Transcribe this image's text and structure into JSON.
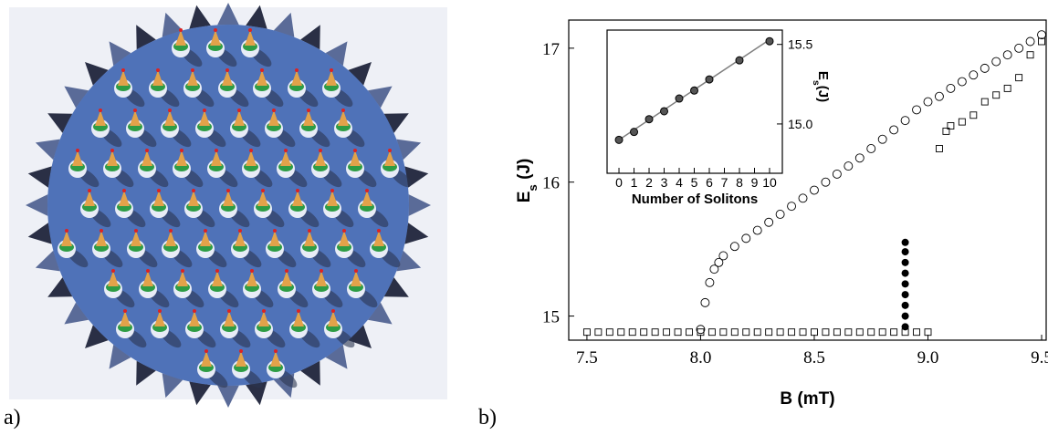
{
  "panel_labels": [
    "a)",
    "b)"
  ],
  "chart_data": [
    {
      "type": "scatter",
      "xlabel": "B (mT)",
      "ylabel_parts": [
        "E",
        "s",
        " (J)"
      ],
      "xlim": [
        7.42,
        9.52
      ],
      "ylim": [
        14.82,
        17.21
      ],
      "xticks": [
        {
          "value": 7.5,
          "label": "7.5"
        },
        {
          "value": 8.0,
          "label": "8.0"
        },
        {
          "value": 8.5,
          "label": "8.5"
        },
        {
          "value": 9.0,
          "label": "9.0"
        },
        {
          "value": 9.5,
          "label": "9.5"
        }
      ],
      "yticks": [
        15,
        16,
        17
      ],
      "series": [
        {
          "marker": "square-open",
          "color": "#000000",
          "x": [
            7.5,
            7.55,
            7.6,
            7.65,
            7.7,
            7.75,
            7.8,
            7.85,
            7.9,
            7.95,
            8.0,
            8.05,
            8.1,
            8.15,
            8.2,
            8.25,
            8.3,
            8.35,
            8.4,
            8.45,
            8.5,
            8.55,
            8.6,
            8.65,
            8.7,
            8.75,
            8.8,
            8.85,
            8.9,
            8.95,
            9.0,
            9.05,
            9.08,
            9.1,
            9.15,
            9.2,
            9.25,
            9.3,
            9.35,
            9.4,
            9.45,
            9.5
          ],
          "values": [
            14.88,
            14.88,
            14.88,
            14.88,
            14.88,
            14.88,
            14.88,
            14.88,
            14.88,
            14.88,
            14.88,
            14.88,
            14.88,
            14.88,
            14.88,
            14.88,
            14.88,
            14.88,
            14.88,
            14.88,
            14.88,
            14.88,
            14.88,
            14.88,
            14.88,
            14.88,
            14.88,
            14.88,
            14.88,
            14.88,
            14.88,
            16.25,
            16.38,
            16.42,
            16.45,
            16.5,
            16.6,
            16.65,
            16.7,
            16.78,
            16.95,
            17.05
          ]
        },
        {
          "marker": "circle-open",
          "color": "#000000",
          "x": [
            8.0,
            8.02,
            8.04,
            8.06,
            8.08,
            8.1,
            8.15,
            8.2,
            8.25,
            8.3,
            8.35,
            8.4,
            8.45,
            8.5,
            8.55,
            8.6,
            8.65,
            8.7,
            8.75,
            8.8,
            8.85,
            8.9,
            8.95,
            9.0,
            9.05,
            9.1,
            9.15,
            9.2,
            9.25,
            9.3,
            9.35,
            9.4,
            9.45,
            9.5
          ],
          "values": [
            14.9,
            15.1,
            15.25,
            15.35,
            15.4,
            15.45,
            15.52,
            15.58,
            15.64,
            15.7,
            15.76,
            15.82,
            15.88,
            15.94,
            16.0,
            16.06,
            16.12,
            16.18,
            16.25,
            16.32,
            16.39,
            16.46,
            16.54,
            16.6,
            16.64,
            16.7,
            16.75,
            16.8,
            16.85,
            16.9,
            16.95,
            17.0,
            17.05,
            17.1
          ]
        },
        {
          "marker": "circle-filled",
          "color": "#000000",
          "x": [
            8.9,
            8.9,
            8.9,
            8.9,
            8.9,
            8.9,
            8.9,
            8.9,
            8.9
          ],
          "values": [
            14.92,
            15.0,
            15.08,
            15.16,
            15.24,
            15.32,
            15.4,
            15.48,
            15.55
          ]
        }
      ]
    },
    {
      "type": "scatter",
      "xlabel": "Number of Solitons",
      "ylabel_parts": [
        "E",
        "s",
        "(J)"
      ],
      "xlim": [
        -0.79,
        10.85
      ],
      "ylim": [
        14.69,
        15.59
      ],
      "xticks": [
        0,
        1,
        2,
        3,
        4,
        5,
        6,
        7,
        8,
        9,
        10
      ],
      "yticks": [
        {
          "value": 15.0,
          "label": "15.0"
        },
        {
          "value": 15.5,
          "label": "15.5"
        }
      ],
      "series": [
        {
          "marker": "line",
          "color": "#808080",
          "x": [
            0,
            10
          ],
          "values": [
            14.9,
            15.53
          ]
        },
        {
          "marker": "circle-gray",
          "color": "#000000",
          "x": [
            0,
            1,
            2,
            3,
            4,
            5,
            6,
            8,
            10
          ],
          "values": [
            14.9,
            14.95,
            15.03,
            15.08,
            15.16,
            15.21,
            15.28,
            15.4,
            15.52
          ]
        }
      ]
    }
  ]
}
